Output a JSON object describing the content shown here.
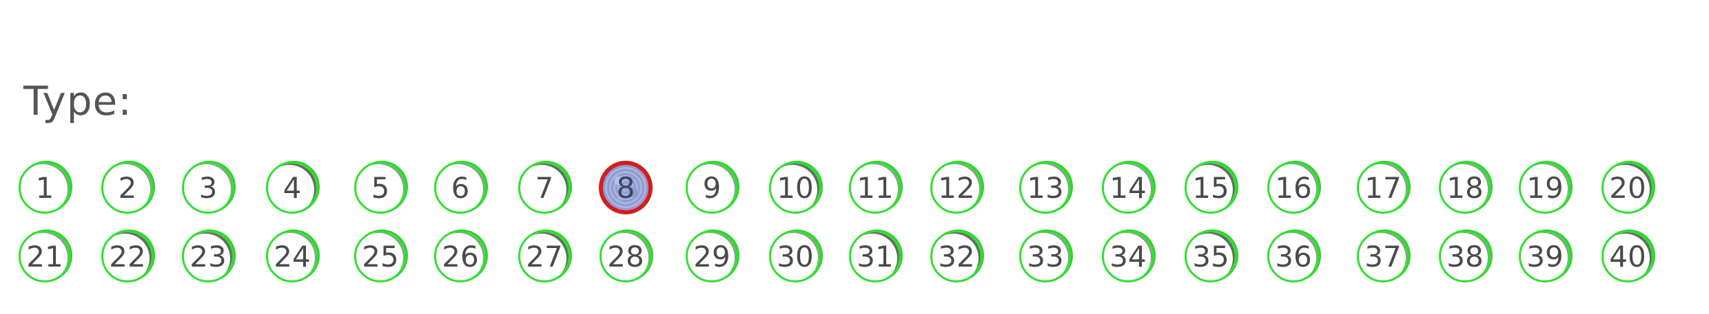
{
  "header": {
    "type_label": "Type:"
  },
  "options": [
    {
      "label": "1",
      "selected": false
    },
    {
      "label": "2",
      "selected": false
    },
    {
      "label": "3",
      "selected": false
    },
    {
      "label": "4",
      "selected": false
    },
    {
      "label": "5",
      "selected": false
    },
    {
      "label": "6",
      "selected": false
    },
    {
      "label": "7",
      "selected": false
    },
    {
      "label": "8",
      "selected": true
    },
    {
      "label": "9",
      "selected": false
    },
    {
      "label": "10",
      "selected": false
    },
    {
      "label": "11",
      "selected": false
    },
    {
      "label": "12",
      "selected": false
    },
    {
      "label": "13",
      "selected": false
    },
    {
      "label": "14",
      "selected": false
    },
    {
      "label": "15",
      "selected": false
    },
    {
      "label": "16",
      "selected": false
    },
    {
      "label": "17",
      "selected": false
    },
    {
      "label": "18",
      "selected": false
    },
    {
      "label": "19",
      "selected": false
    },
    {
      "label": "20",
      "selected": false
    },
    {
      "label": "21",
      "selected": false
    },
    {
      "label": "22",
      "selected": false
    },
    {
      "label": "23",
      "selected": false
    },
    {
      "label": "24",
      "selected": false
    },
    {
      "label": "25",
      "selected": false
    },
    {
      "label": "26",
      "selected": false
    },
    {
      "label": "27",
      "selected": false
    },
    {
      "label": "28",
      "selected": false
    },
    {
      "label": "29",
      "selected": false
    },
    {
      "label": "30",
      "selected": false
    },
    {
      "label": "31",
      "selected": false
    },
    {
      "label": "32",
      "selected": false
    },
    {
      "label": "33",
      "selected": false
    },
    {
      "label": "34",
      "selected": false
    },
    {
      "label": "35",
      "selected": false
    },
    {
      "label": "36",
      "selected": false
    },
    {
      "label": "37",
      "selected": false
    },
    {
      "label": "38",
      "selected": false
    },
    {
      "label": "39",
      "selected": false
    },
    {
      "label": "40",
      "selected": false
    }
  ],
  "colors": {
    "unselected_ring": "#2fe02f",
    "selected_ring": "#d81b1b",
    "selected_fill": "#9ca7d8",
    "text": "#4a4a4a"
  }
}
